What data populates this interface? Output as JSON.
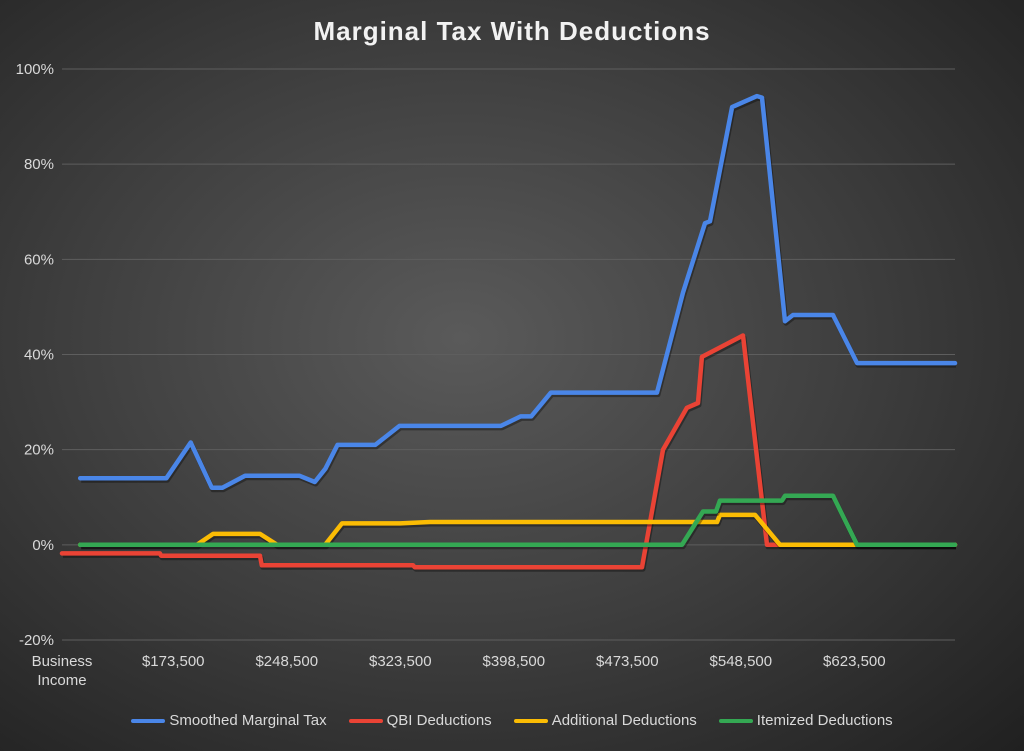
{
  "chart_data": {
    "type": "line",
    "title": "Marginal Tax With Deductions",
    "xlabel": "",
    "ylabel": "",
    "x_tick_labels": [
      "Business Income",
      "$173,500",
      "$248,500",
      "$323,500",
      "$398,500",
      "$473,500",
      "$548,500",
      "$623,500"
    ],
    "x_tick_values": [
      98500,
      173500,
      248500,
      323500,
      398500,
      473500,
      548500,
      623500
    ],
    "xlim": [
      100000,
      690000
    ],
    "ylim": [
      -20,
      100
    ],
    "y_ticks": [
      -20,
      0,
      20,
      40,
      60,
      80,
      100
    ],
    "y_tick_labels": [
      "-20%",
      "0%",
      "20%",
      "40%",
      "60%",
      "80%",
      "100%"
    ],
    "grid": "horizontal",
    "legend_position": "bottom",
    "series": [
      {
        "name": "Smoothed Marginal Tax",
        "color": "#4a86e8",
        "x": [
          112000,
          169000,
          185000,
          199000,
          206000,
          221000,
          257000,
          267000,
          274000,
          282000,
          307000,
          323000,
          370000,
          390000,
          403000,
          410000,
          423000,
          436000,
          486000,
          493100,
          510300,
          524800,
          528100,
          542700,
          559200,
          562500,
          577700,
          583000,
          609400,
          625300,
          690000
        ],
        "y": [
          14,
          14,
          21.5,
          12,
          12,
          14.5,
          14.5,
          13.2,
          16,
          21,
          21,
          25,
          25,
          25,
          27,
          27,
          32,
          32,
          32,
          32,
          53,
          67.6,
          68,
          92,
          94.3,
          94,
          47,
          48.3,
          48.3,
          38.2,
          38.2
        ]
      },
      {
        "name": "QBI Deductions",
        "color": "#ea4335",
        "x": [
          100000,
          164700,
          165500,
          230800,
          232000,
          332000,
          333000,
          419100,
          483200,
          497100,
          512900,
          520200,
          522800,
          549900,
          565800,
          572400,
          690000
        ],
        "y": [
          -1.8,
          -1.8,
          -2.3,
          -2.3,
          -4.3,
          -4.3,
          -4.7,
          -4.7,
          -4.7,
          20,
          28.8,
          29.8,
          39.5,
          44,
          0,
          0,
          0
        ]
      },
      {
        "name": "Additional Deductions",
        "color": "#fbbc04",
        "x": [
          112000,
          189200,
          199800,
          230800,
          242100,
          273800,
          285000,
          323300,
          343100,
          532800,
          534700,
          557900,
          574400,
          690000
        ],
        "y": [
          0,
          0,
          2.3,
          2.3,
          0,
          0,
          4.5,
          4.5,
          4.8,
          4.8,
          6.3,
          6.3,
          0,
          0
        ]
      },
      {
        "name": "Itemized Deductions",
        "color": "#34a853",
        "x": [
          112000,
          509600,
          523500,
          532100,
          534700,
          575700,
          577700,
          609400,
          625300,
          690000
        ],
        "y": [
          0,
          0,
          7,
          7,
          9.3,
          9.3,
          10.3,
          10.3,
          0,
          0
        ]
      }
    ]
  }
}
